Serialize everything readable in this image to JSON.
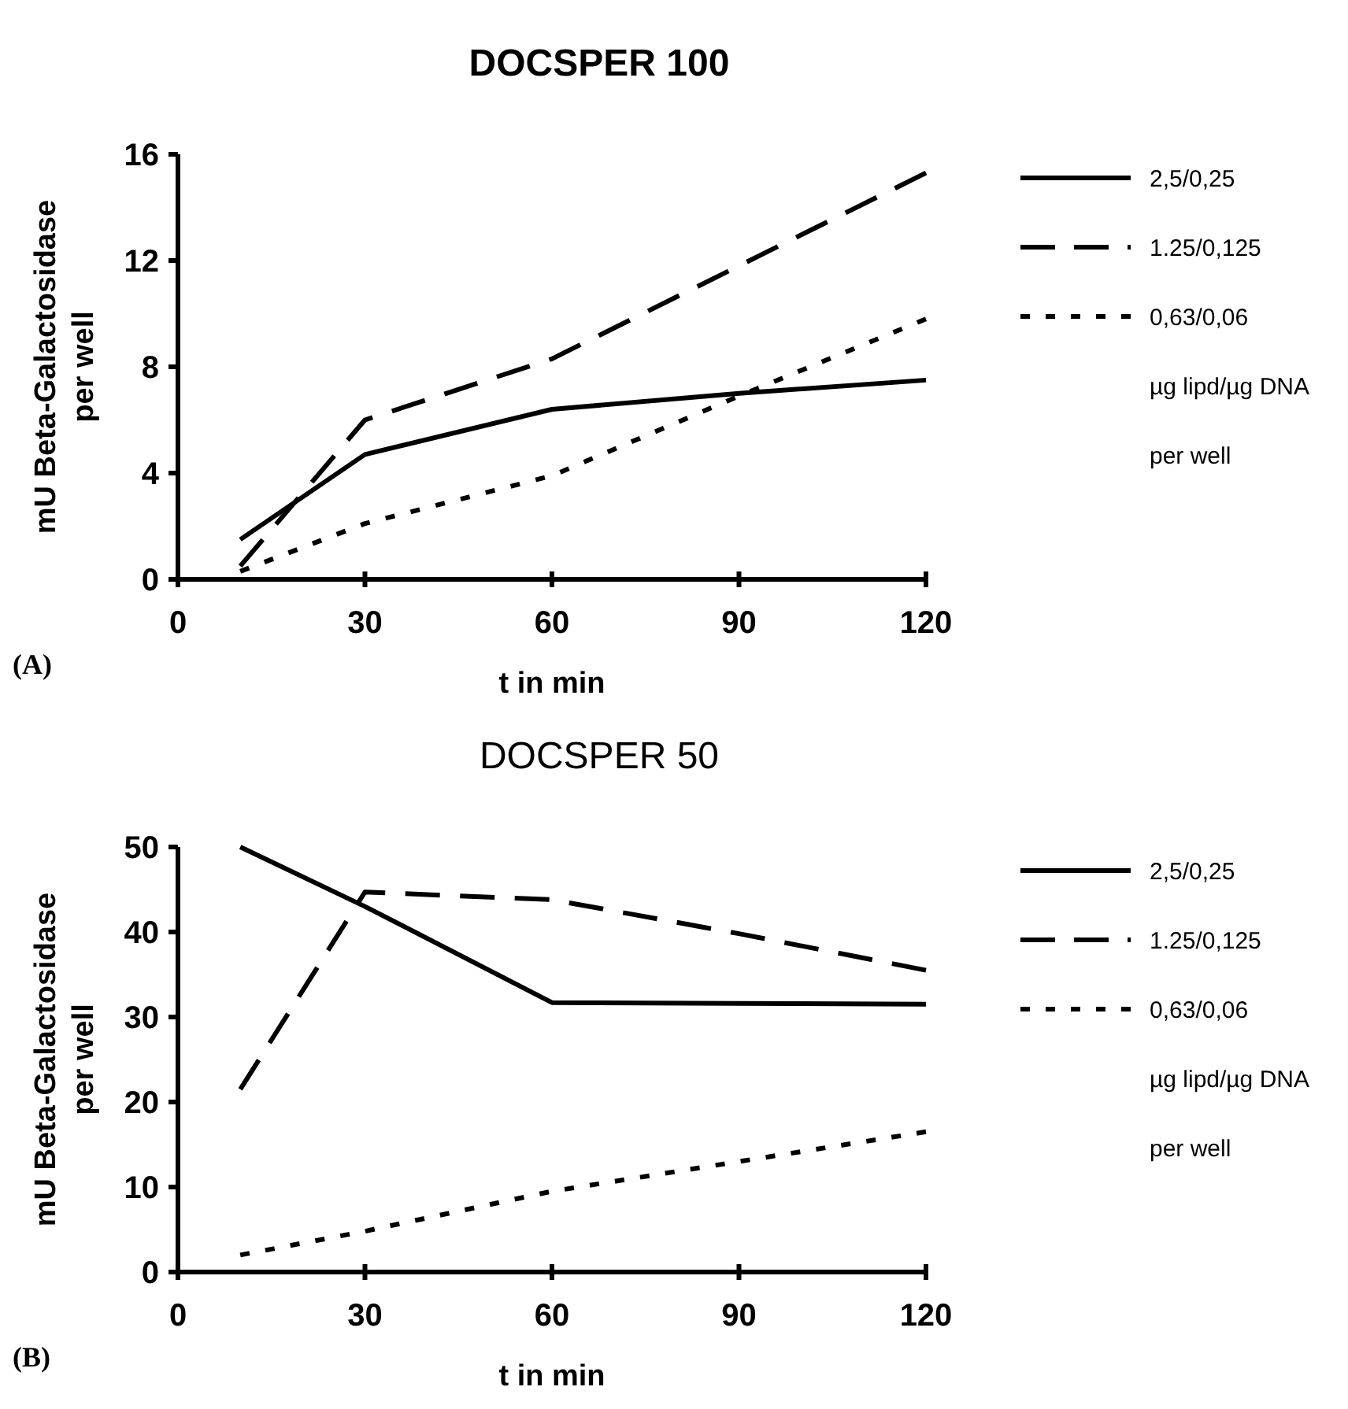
{
  "chart_data": [
    {
      "type": "line",
      "title": "DOCSPER 100",
      "xlabel": "t in min",
      "ylabel": "mU Beta-Galactosidase per well",
      "x": [
        10,
        30,
        60,
        90,
        120
      ],
      "xlim": [
        0,
        120
      ],
      "xticks": [
        0,
        30,
        60,
        90,
        120
      ],
      "ylim": [
        0,
        16
      ],
      "yticks": [
        0,
        4,
        8,
        12,
        16
      ],
      "grid": false,
      "legend": "right",
      "legend_title": "µg lipd/µg DNA per well",
      "marker": "none",
      "annotations": [
        "(A)"
      ],
      "series": [
        {
          "name": "2,5/0,25",
          "color": "#000000",
          "line_style": "solid",
          "values": [
            1.5,
            4.7,
            6.4,
            7.0,
            7.5
          ]
        },
        {
          "name": "1.25/0,125",
          "color": "#000000",
          "line_style": "dashed",
          "values": [
            0.5,
            6.0,
            8.3,
            11.8,
            15.3
          ]
        },
        {
          "name": "0,63/0,06",
          "color": "#000000",
          "line_style": "dotted",
          "values": [
            0.3,
            2.1,
            3.9,
            6.9,
            9.8
          ]
        }
      ]
    },
    {
      "type": "line",
      "title": "DOCSPER 50",
      "xlabel": "t in min",
      "ylabel": "mU Beta-Galactosidase per well",
      "x": [
        10,
        30,
        60,
        90,
        120
      ],
      "xlim": [
        0,
        120
      ],
      "xticks": [
        0,
        30,
        60,
        90,
        120
      ],
      "ylim": [
        0,
        50
      ],
      "yticks": [
        0,
        10,
        20,
        30,
        40,
        50
      ],
      "grid": false,
      "legend": "right",
      "legend_title": "µg lipd/µg DNA per well",
      "marker": "none",
      "annotations": [
        "(B)"
      ],
      "series": [
        {
          "name": "2,5/0,25",
          "color": "#000000",
          "line_style": "solid",
          "values": [
            50,
            43,
            31.7,
            31.6,
            31.5
          ]
        },
        {
          "name": "1.25/0,125",
          "color": "#000000",
          "line_style": "dashed",
          "values": [
            21.5,
            44.7,
            43.8,
            39.8,
            35.5
          ]
        },
        {
          "name": "0,63/0,06",
          "color": "#000000",
          "line_style": "dotted",
          "values": [
            2,
            4.8,
            9.5,
            13,
            16.5
          ]
        }
      ]
    }
  ]
}
